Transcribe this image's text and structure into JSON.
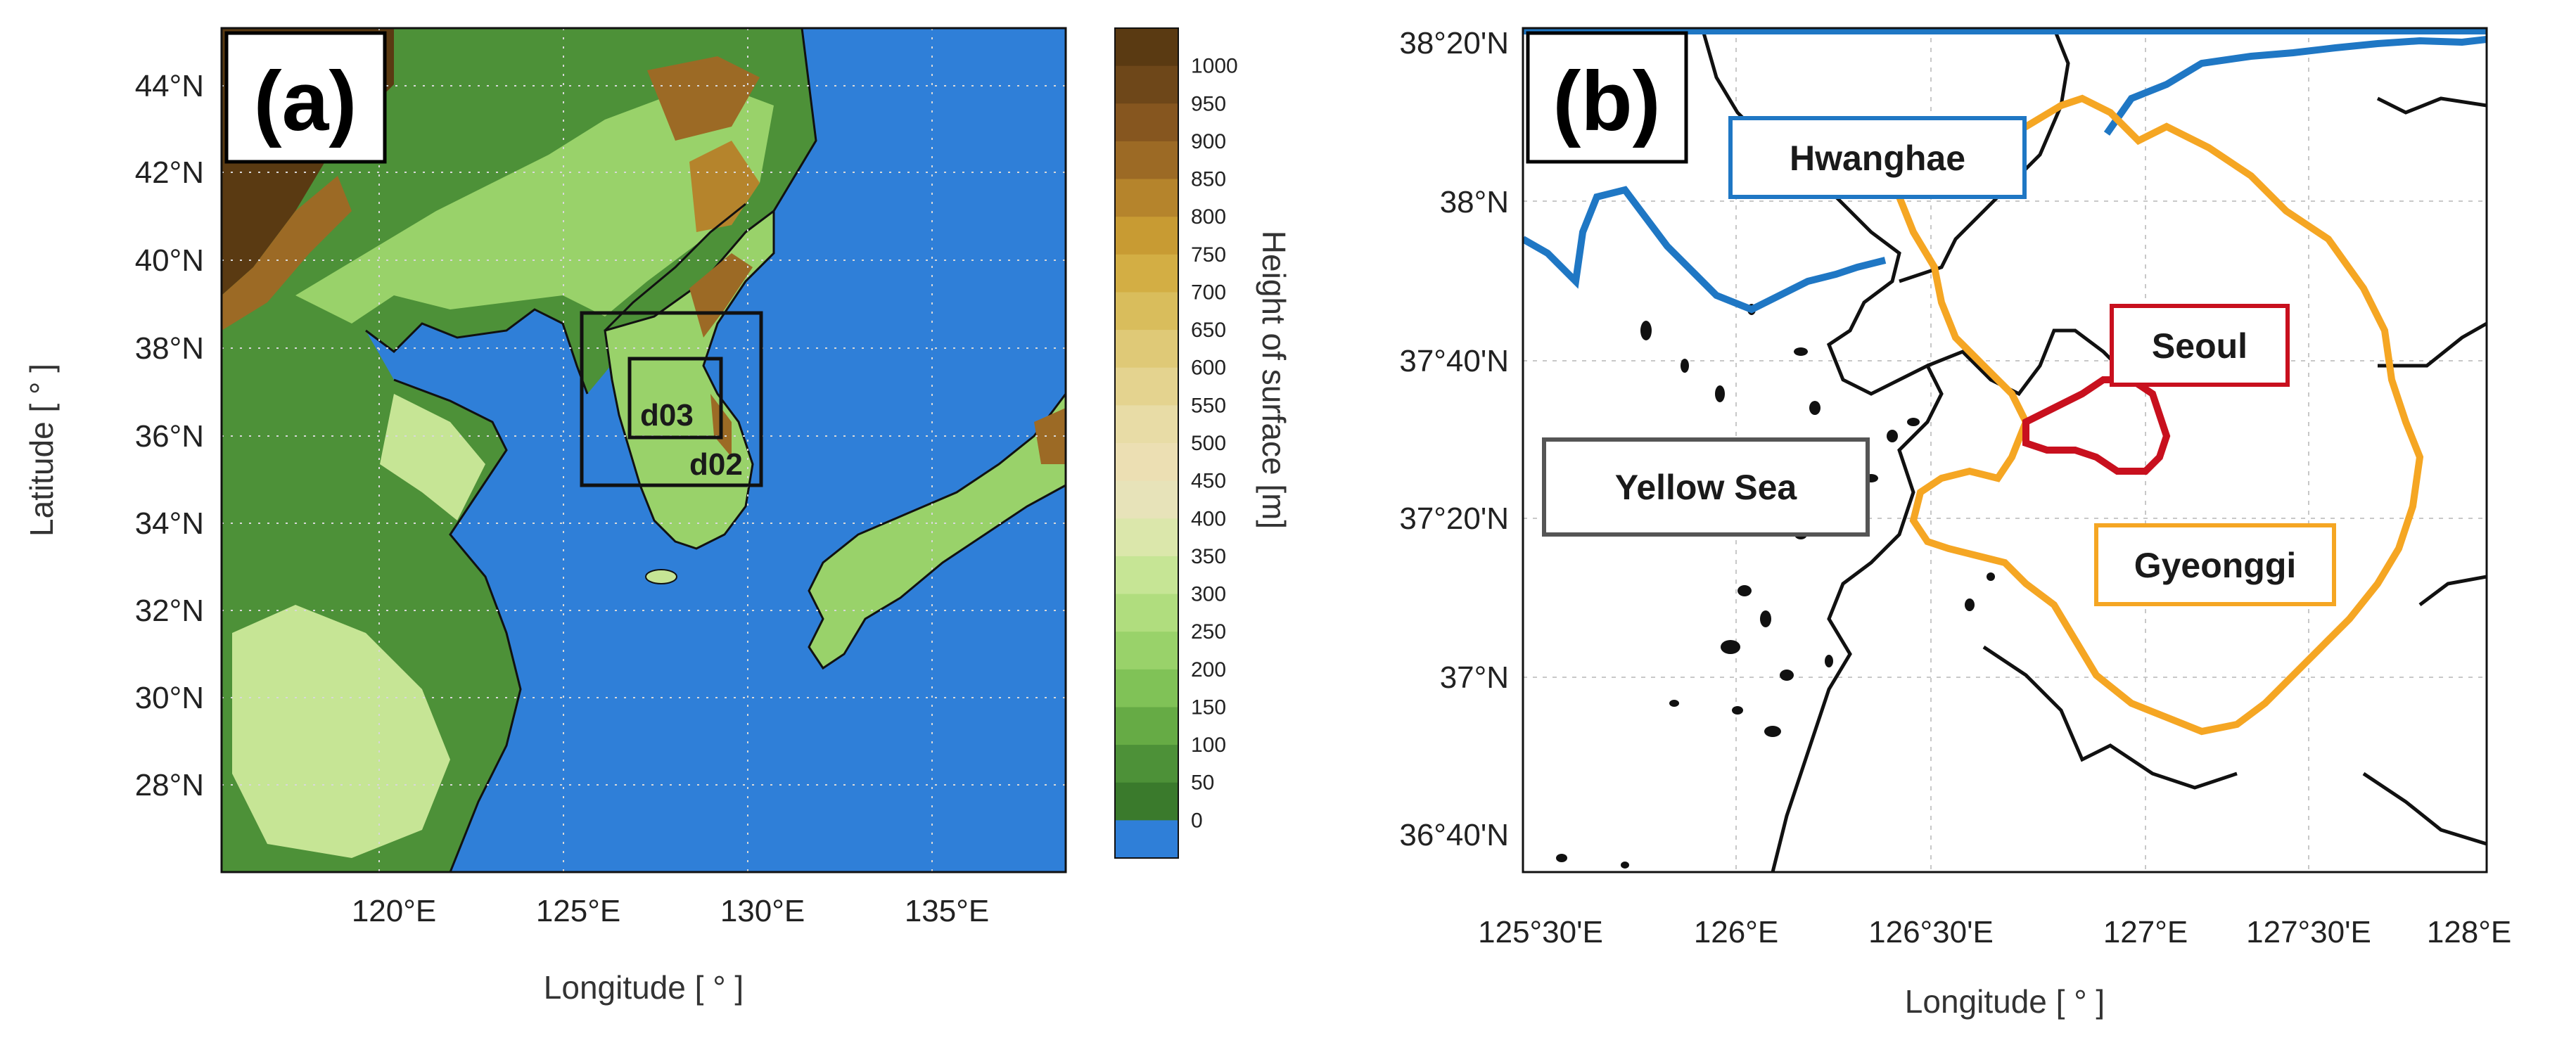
{
  "panel_a": {
    "tag": "(a)",
    "xlabel": "Longitude [ ° ]",
    "ylabel": "Latitude [ ° ]",
    "x_ticks": [
      "120°E",
      "125°E",
      "130°E",
      "135°E"
    ],
    "y_ticks": [
      "44°N",
      "42°N",
      "40°N",
      "38°N",
      "36°N",
      "34°N",
      "32°N",
      "30°N",
      "28°N"
    ],
    "domain_labels": {
      "d02": "d02",
      "d03": "d03"
    },
    "colorbar": {
      "title": "Height of surface [m]",
      "ticks": [
        "1000",
        "950",
        "900",
        "850",
        "800",
        "750",
        "700",
        "650",
        "600",
        "550",
        "500",
        "450",
        "400",
        "350",
        "300",
        "250",
        "200",
        "150",
        "100",
        "50",
        "0"
      ],
      "colors": [
        "#5a3a12",
        "#6e4719",
        "#86561f",
        "#9c6a25",
        "#b5842c",
        "#c89b33",
        "#d3ae44",
        "#d9bd5c",
        "#dfc977",
        "#e4d38f",
        "#e8dca6",
        "#ecdfb3",
        "#e7e3b9",
        "#dbe7ab",
        "#c6e595",
        "#b0dd7e",
        "#99d26a",
        "#80c257",
        "#66ab45",
        "#4d9138",
        "#3a7a2c",
        "#2f7fd8"
      ]
    }
  },
  "panel_b": {
    "tag": "(b)",
    "xlabel": "Longitude [ ° ]",
    "x_ticks": [
      "125°30'E",
      "126°E",
      "126°30'E",
      "127°E",
      "127°30'E",
      "128°E"
    ],
    "y_ticks": [
      "38°20'N",
      "38°N",
      "37°40'N",
      "37°20'N",
      "37°N",
      "36°40'N"
    ],
    "regions": {
      "hwanghae": "Hwanghae",
      "seoul": "Seoul",
      "gyeonggi": "Gyeonggi",
      "yellow_sea": "Yellow Sea"
    },
    "colors": {
      "hwanghae": "#1f77c4",
      "seoul": "#c8101e",
      "gyeonggi": "#f5a623",
      "coast": "#111111"
    }
  }
}
